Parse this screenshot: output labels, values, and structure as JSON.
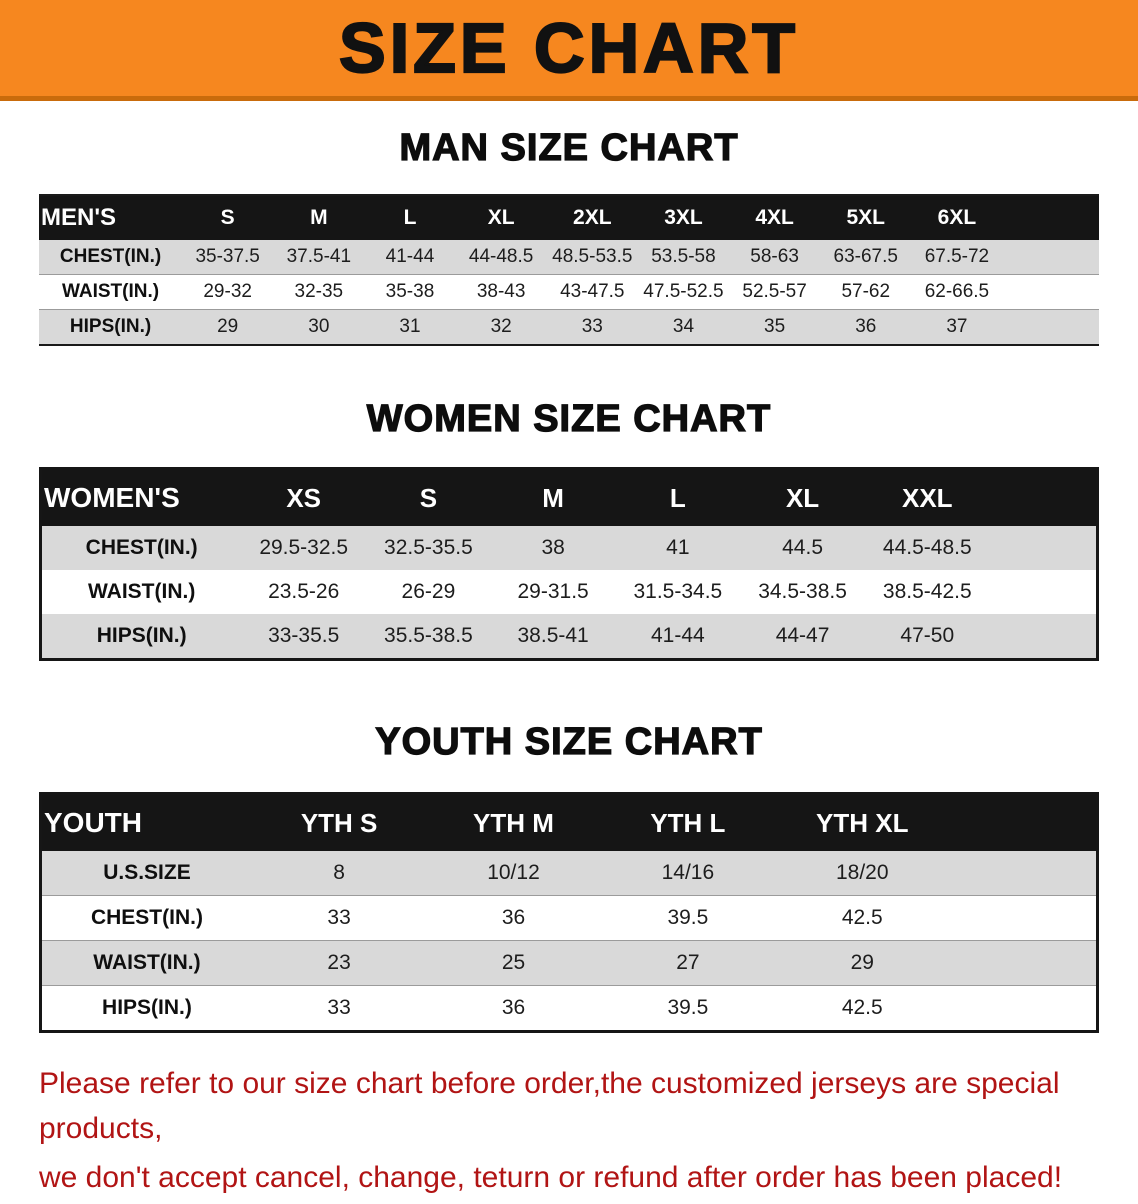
{
  "banner": {
    "title": "SIZE CHART"
  },
  "colors": {
    "banner_bg": "#f6871f",
    "banner_text": "#111111",
    "table_header_bg": "#151515",
    "table_header_text": "#ffffff",
    "row_stripe": "#d9d9d9",
    "notice_text": "#b11414"
  },
  "sections": [
    {
      "heading": "MAN SIZE CHART",
      "table": {
        "header": [
          "MEN'S",
          "S",
          "M",
          "L",
          "XL",
          "2XL",
          "3XL",
          "4XL",
          "5XL",
          "6XL"
        ],
        "rows": [
          [
            "CHEST(IN.)",
            "35-37.5",
            "37.5-41",
            "41-44",
            "44-48.5",
            "48.5-53.5",
            "53.5-58",
            "58-63",
            "63-67.5",
            "67.5-72"
          ],
          [
            "WAIST(IN.)",
            "29-32",
            "32-35",
            "35-38",
            "38-43",
            "43-47.5",
            "47.5-52.5",
            "52.5-57",
            "57-62",
            "62-66.5"
          ],
          [
            "HIPS(IN.)",
            "29",
            "30",
            "31",
            "32",
            "33",
            "34",
            "35",
            "36",
            "37"
          ]
        ]
      }
    },
    {
      "heading": "WOMEN SIZE CHART",
      "table": {
        "header": [
          "WOMEN'S",
          "XS",
          "S",
          "M",
          "L",
          "XL",
          "XXL"
        ],
        "rows": [
          [
            "CHEST(IN.)",
            "29.5-32.5",
            "32.5-35.5",
            "38",
            "41",
            "44.5",
            "44.5-48.5"
          ],
          [
            "WAIST(IN.)",
            "23.5-26",
            "26-29",
            "29-31.5",
            "31.5-34.5",
            "34.5-38.5",
            "38.5-42.5"
          ],
          [
            "HIPS(IN.)",
            "33-35.5",
            "35.5-38.5",
            "38.5-41",
            "41-44",
            "44-47",
            "47-50"
          ]
        ]
      }
    },
    {
      "heading": "YOUTH SIZE CHART",
      "table": {
        "header": [
          "YOUTH",
          "YTH S",
          "YTH M",
          "YTH L",
          "YTH XL"
        ],
        "rows": [
          [
            "U.S.SIZE",
            "8",
            "10/12",
            "14/16",
            "18/20"
          ],
          [
            "CHEST(IN.)",
            "33",
            "36",
            "39.5",
            "42.5"
          ],
          [
            "WAIST(IN.)",
            "23",
            "25",
            "27",
            "29"
          ],
          [
            "HIPS(IN.)",
            "33",
            "36",
            "39.5",
            "42.5"
          ]
        ]
      }
    }
  ],
  "footer": {
    "line1": "Please refer to our size chart before order,the customized jerseys are special products,",
    "line2": "we don't accept cancel, change, teturn or refund after order has been placed!"
  }
}
